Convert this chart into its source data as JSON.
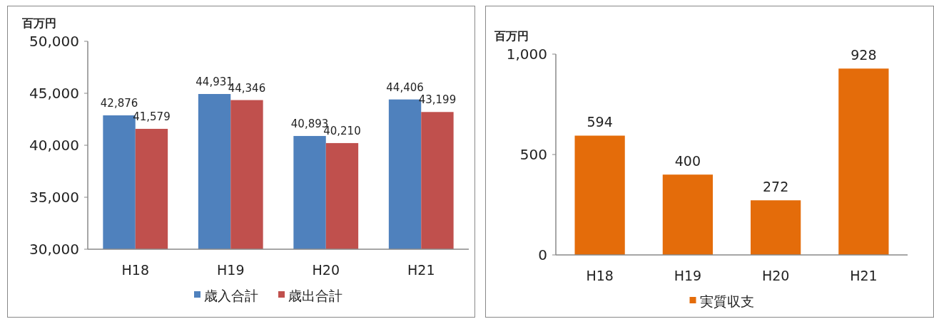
{
  "chart_data": [
    {
      "type": "bar",
      "ylabel": "百万円",
      "categories": [
        "H18",
        "H19",
        "H20",
        "H21"
      ],
      "series": [
        {
          "name": "歳入合計",
          "color": "#4f81bd",
          "values": [
            42876,
            44931,
            40893,
            44406
          ],
          "value_labels": [
            "42,876",
            "44,931",
            "40,893",
            "44,406"
          ]
        },
        {
          "name": "歳出合計",
          "color": "#c0504d",
          "values": [
            41579,
            44346,
            40210,
            43199
          ],
          "value_labels": [
            "41,579",
            "44,346",
            "40,210",
            "43,199"
          ]
        }
      ],
      "ylim": [
        30000,
        50000
      ],
      "yticks": [
        {
          "value": 30000,
          "label": "30,000"
        },
        {
          "value": 35000,
          "label": "35,000"
        },
        {
          "value": 40000,
          "label": "40,000"
        },
        {
          "value": 45000,
          "label": "45,000"
        },
        {
          "value": 50000,
          "label": "50,000"
        }
      ],
      "grid": false,
      "legend": "bottom"
    },
    {
      "type": "bar",
      "ylabel": "百万円",
      "categories": [
        "H18",
        "H19",
        "H20",
        "H21"
      ],
      "series": [
        {
          "name": "実質収支",
          "color": "#e46c0a",
          "values": [
            594,
            400,
            272,
            928
          ],
          "value_labels": [
            "594",
            "400",
            "272",
            "928"
          ]
        }
      ],
      "ylim": [
        0,
        1000
      ],
      "yticks": [
        0,
        500,
        {
          "value": 1000,
          "label": "1,000"
        }
      ],
      "grid": false,
      "legend": "bottom"
    }
  ]
}
